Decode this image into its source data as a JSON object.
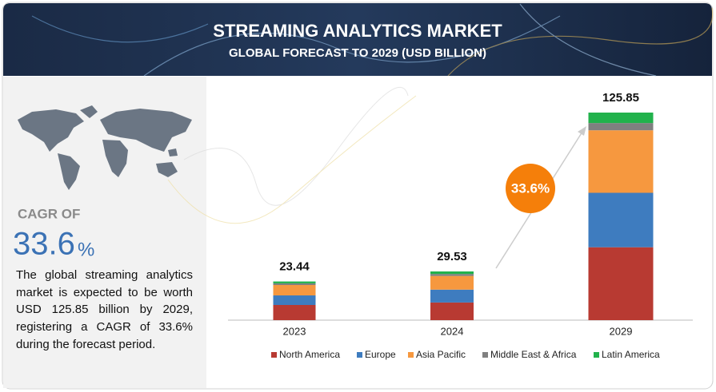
{
  "chart_data": {
    "type": "stacked-bar",
    "title": "STREAMING ANALYTICS MARKET",
    "subtitle": "GLOBAL FORECAST TO 2029 (USD BILLION)",
    "categories": [
      "2023",
      "2024",
      "2029"
    ],
    "totals": [
      23.44,
      29.53,
      125.85
    ],
    "series": [
      {
        "name": "North America",
        "color": "#b83a32",
        "values": [
          9.2,
          10.7,
          44.2
        ]
      },
      {
        "name": "Europe",
        "color": "#3e7cbf",
        "values": [
          5.8,
          7.8,
          33.0
        ]
      },
      {
        "name": "Asia Pacific",
        "color": "#f6983f",
        "values": [
          6.3,
          8.3,
          37.9
        ]
      },
      {
        "name": "Middle East & Africa",
        "color": "#808080",
        "values": [
          1.0,
          1.2,
          4.4
        ]
      },
      {
        "name": "Latin America",
        "color": "#22b24c",
        "values": [
          1.14,
          1.53,
          6.35
        ]
      }
    ],
    "annotation": "33.6%"
  },
  "sidebar": {
    "cagr_label": "CAGR OF",
    "cagr_number": "33.6",
    "cagr_unit": "%",
    "description": "The global streaming analytics market is expected to be worth USD 125.85 billion by 2029, registering a CAGR of 33.6% during the forecast period."
  }
}
